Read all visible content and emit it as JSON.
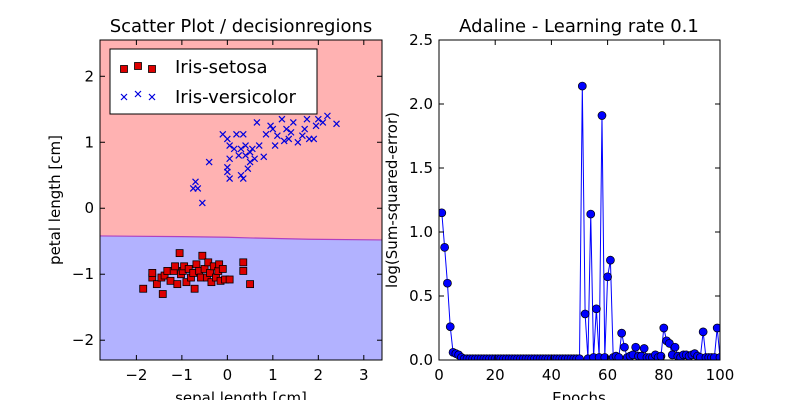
{
  "chart_data": [
    {
      "type": "scatter",
      "title": "Scatter Plot / decisionregions",
      "xlabel": "sepal length [cm]",
      "ylabel": "petal length [cm]",
      "xlim": [
        -2.8,
        3.4
      ],
      "ylim": [
        -2.3,
        2.55
      ],
      "xticks": [
        -2,
        -1,
        0,
        1,
        2,
        3
      ],
      "yticks": [
        -2,
        -1,
        0,
        1,
        2
      ],
      "xtick_labels": [
        "−2",
        "−1",
        "0",
        "1",
        "2",
        "3"
      ],
      "ytick_labels": [
        "−2",
        "−1",
        "0",
        "1",
        "2"
      ],
      "grid": false,
      "legend_position": "top-left",
      "regions": [
        {
          "class": "Iris-versicolor",
          "side": "above",
          "color": "#ffb2b2"
        },
        {
          "class": "Iris-setosa",
          "side": "below",
          "color": "#b2b2ff"
        }
      ],
      "decision_boundary": {
        "color": "#b040c0",
        "x": [
          -2.8,
          -1.0,
          0.0,
          0.5,
          1.8,
          3.4
        ],
        "y": [
          -0.42,
          -0.43,
          -0.44,
          -0.45,
          -0.47,
          -0.48
        ]
      },
      "series": [
        {
          "name": "Iris-setosa",
          "marker": "square",
          "color": "#dd0000",
          "points": [
            [
              -1.85,
              -1.22
            ],
            [
              -1.65,
              -1.05
            ],
            [
              -1.65,
              -0.98
            ],
            [
              -1.55,
              -1.15
            ],
            [
              -1.45,
              -1.05
            ],
            [
              -1.42,
              -1.3
            ],
            [
              -1.38,
              -1.02
            ],
            [
              -1.32,
              -0.95
            ],
            [
              -1.25,
              -1.1
            ],
            [
              -1.18,
              -0.95
            ],
            [
              -1.15,
              -0.88
            ],
            [
              -1.1,
              -1.15
            ],
            [
              -1.05,
              -0.68
            ],
            [
              -1.02,
              -1.0
            ],
            [
              -0.98,
              -0.95
            ],
            [
              -0.95,
              -0.88
            ],
            [
              -0.9,
              -1.12
            ],
            [
              -0.85,
              -0.92
            ],
            [
              -0.8,
              -1.05
            ],
            [
              -0.75,
              -0.98
            ],
            [
              -0.72,
              -1.22
            ],
            [
              -0.68,
              -0.85
            ],
            [
              -0.62,
              -0.95
            ],
            [
              -0.58,
              -1.05
            ],
            [
              -0.55,
              -0.72
            ],
            [
              -0.5,
              -0.92
            ],
            [
              -0.45,
              -1.05
            ],
            [
              -0.42,
              -0.82
            ],
            [
              -0.38,
              -0.98
            ],
            [
              -0.35,
              -1.12
            ],
            [
              -0.3,
              -0.88
            ],
            [
              -0.25,
              -1.05
            ],
            [
              -0.2,
              -0.95
            ],
            [
              -0.18,
              -0.85
            ],
            [
              -0.15,
              -1.1
            ],
            [
              -0.1,
              -0.92
            ],
            [
              -0.05,
              -1.08
            ],
            [
              0.05,
              -1.08
            ],
            [
              0.35,
              -0.82
            ],
            [
              0.35,
              -0.95
            ],
            [
              0.5,
              -1.15
            ]
          ]
        },
        {
          "name": "Iris-versicolor",
          "marker": "x",
          "color": "#0000dd",
          "points": [
            [
              -0.55,
              0.08
            ],
            [
              -0.75,
              0.3
            ],
            [
              -0.65,
              0.3
            ],
            [
              -0.7,
              0.4
            ],
            [
              -0.4,
              0.7
            ],
            [
              -0.1,
              1.12
            ],
            [
              0.0,
              1.05
            ],
            [
              0.05,
              0.95
            ],
            [
              0.05,
              0.75
            ],
            [
              0.0,
              0.62
            ],
            [
              0.0,
              0.55
            ],
            [
              0.05,
              0.45
            ],
            [
              0.15,
              0.9
            ],
            [
              0.2,
              1.12
            ],
            [
              0.25,
              0.8
            ],
            [
              0.3,
              0.5
            ],
            [
              0.3,
              0.9
            ],
            [
              0.35,
              1.12
            ],
            [
              0.35,
              0.45
            ],
            [
              0.4,
              0.8
            ],
            [
              0.4,
              0.95
            ],
            [
              0.45,
              0.6
            ],
            [
              0.5,
              0.85
            ],
            [
              0.5,
              0.7
            ],
            [
              0.55,
              0.9
            ],
            [
              0.6,
              0.75
            ],
            [
              0.65,
              1.3
            ],
            [
              0.7,
              0.95
            ],
            [
              0.8,
              0.78
            ],
            [
              0.85,
              1.12
            ],
            [
              0.95,
              1.25
            ],
            [
              1.0,
              1.2
            ],
            [
              1.05,
              0.95
            ],
            [
              1.1,
              1.1
            ],
            [
              1.2,
              1.35
            ],
            [
              1.25,
              1.02
            ],
            [
              1.3,
              1.2
            ],
            [
              1.35,
              1.05
            ],
            [
              1.4,
              1.15
            ],
            [
              1.45,
              1.3
            ],
            [
              1.55,
              1.0
            ],
            [
              1.65,
              1.1
            ],
            [
              1.7,
              1.2
            ],
            [
              1.75,
              1.35
            ],
            [
              1.8,
              1.05
            ],
            [
              1.9,
              1.05
            ],
            [
              1.95,
              1.25
            ],
            [
              2.0,
              1.35
            ],
            [
              2.1,
              1.3
            ],
            [
              2.2,
              1.4
            ],
            [
              2.4,
              1.28
            ]
          ]
        }
      ]
    },
    {
      "type": "line",
      "title": "Adaline - Learning rate 0.1",
      "xlabel": "Epochs",
      "ylabel": "log(Sum-squared-error)",
      "xlim": [
        0,
        100
      ],
      "ylim": [
        0,
        2.5
      ],
      "xticks": [
        0,
        20,
        40,
        60,
        80,
        100
      ],
      "yticks": [
        0.0,
        0.5,
        1.0,
        1.5,
        2.0,
        2.5
      ],
      "xtick_labels": [
        "0",
        "20",
        "40",
        "60",
        "80",
        "100"
      ],
      "ytick_labels": [
        "0.0",
        "0.5",
        "1.0",
        "1.5",
        "2.0",
        "2.5"
      ],
      "grid": false,
      "series": [
        {
          "color": "#0000ff",
          "marker": "circle",
          "x": [
            1,
            2,
            3,
            4,
            5,
            6,
            7,
            8,
            9,
            10,
            11,
            12,
            13,
            14,
            15,
            16,
            17,
            18,
            19,
            20,
            21,
            22,
            23,
            24,
            25,
            26,
            27,
            28,
            29,
            30,
            31,
            32,
            33,
            34,
            35,
            36,
            37,
            38,
            39,
            40,
            41,
            42,
            43,
            44,
            45,
            46,
            47,
            48,
            49,
            50,
            51,
            52,
            53,
            54,
            55,
            56,
            57,
            58,
            59,
            60,
            61,
            62,
            63,
            64,
            65,
            66,
            67,
            68,
            69,
            70,
            71,
            72,
            73,
            74,
            75,
            76,
            77,
            78,
            79,
            80,
            81,
            82,
            83,
            84,
            85,
            86,
            87,
            88,
            89,
            90,
            91,
            92,
            93,
            94,
            95,
            96,
            97,
            98,
            99,
            100
          ],
          "y": [
            1.15,
            0.88,
            0.6,
            0.26,
            0.06,
            0.05,
            0.04,
            0.02,
            0.01,
            0.01,
            0.01,
            0.01,
            0.01,
            0.01,
            0.01,
            0.01,
            0.01,
            0.01,
            0.01,
            0.01,
            0.01,
            0.01,
            0.01,
            0.01,
            0.01,
            0.01,
            0.01,
            0.01,
            0.01,
            0.01,
            0.01,
            0.01,
            0.01,
            0.01,
            0.01,
            0.01,
            0.01,
            0.01,
            0.01,
            0.01,
            0.01,
            0.01,
            0.01,
            0.01,
            0.01,
            0.01,
            0.01,
            0.01,
            0.01,
            0.01,
            2.14,
            0.36,
            0.01,
            1.14,
            0.02,
            0.4,
            0.02,
            1.91,
            0.02,
            0.65,
            0.78,
            0.02,
            0.03,
            0.02,
            0.21,
            0.1,
            0.02,
            0.03,
            0.04,
            0.1,
            0.03,
            0.03,
            0.09,
            0.02,
            0.02,
            0.02,
            0.04,
            0.02,
            0.03,
            0.25,
            0.15,
            0.13,
            0.04,
            0.1,
            0.03,
            0.02,
            0.04,
            0.04,
            0.03,
            0.04,
            0.05,
            0.03,
            0.02,
            0.22,
            0.02,
            0.02,
            0.02,
            0.02,
            0.25,
            0.02
          ]
        }
      ]
    }
  ]
}
